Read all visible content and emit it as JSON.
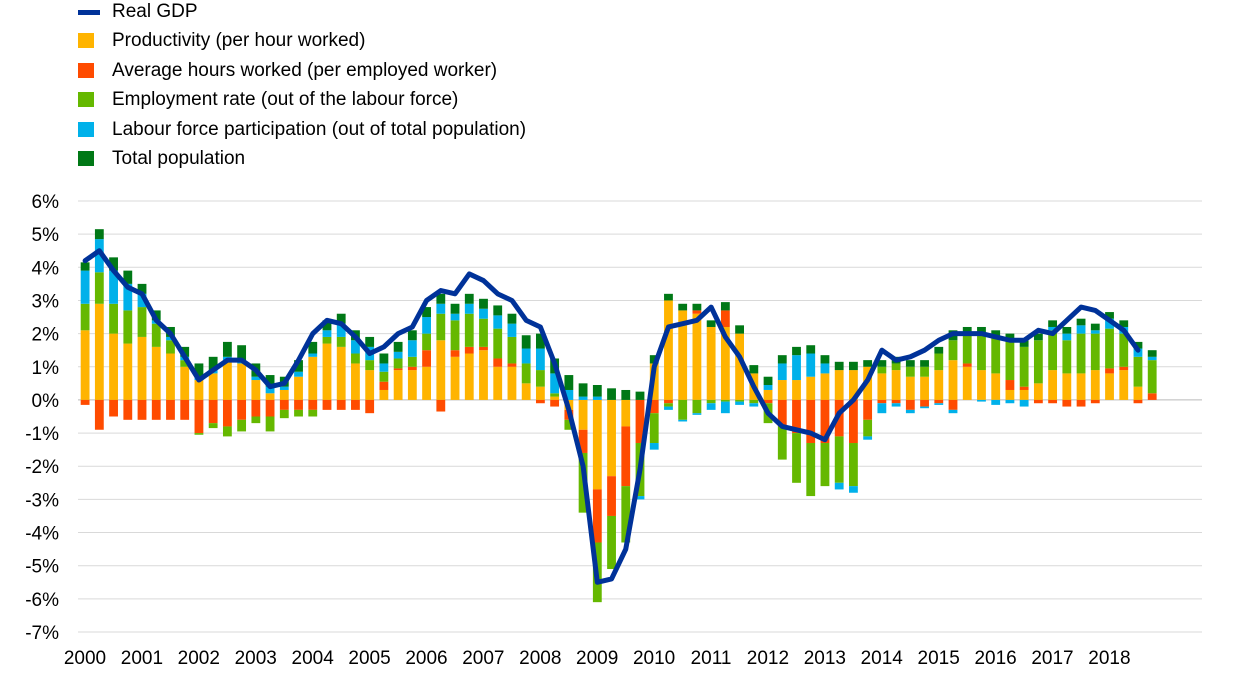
{
  "chart_data": {
    "type": "bar",
    "stacked": true,
    "grid": true,
    "legend_position": "top-left",
    "ylim": [
      -7,
      6
    ],
    "y_ticks": [
      "6%",
      "5%",
      "4%",
      "3%",
      "2%",
      "1%",
      "0%",
      "-1%",
      "-2%",
      "-3%",
      "-4%",
      "-5%",
      "-6%",
      "-7%"
    ],
    "x_tick_labels": [
      "2000",
      "2001",
      "2002",
      "2003",
      "2004",
      "2005",
      "2006",
      "2007",
      "2008",
      "2009",
      "2010",
      "2011",
      "2012",
      "2013",
      "2014",
      "2015",
      "2016",
      "2017",
      "2018"
    ],
    "quarters_per_year": 4,
    "series": [
      {
        "name": "Real GDP",
        "kind": "line",
        "color": "#003299",
        "values": [
          4.2,
          4.5,
          3.9,
          3.4,
          3.2,
          2.4,
          2.0,
          1.3,
          0.6,
          0.9,
          1.2,
          1.2,
          0.9,
          0.4,
          0.5,
          1.2,
          2.0,
          2.4,
          2.3,
          1.9,
          1.4,
          1.6,
          2.0,
          2.2,
          3.0,
          3.3,
          3.2,
          3.8,
          3.6,
          3.2,
          3.0,
          2.4,
          2.2,
          1.1,
          -0.3,
          -2.0,
          -5.5,
          -5.4,
          -4.5,
          -2.1,
          1.0,
          2.2,
          2.3,
          2.4,
          2.8,
          1.9,
          1.3,
          0.4,
          -0.4,
          -0.8,
          -0.9,
          -1.0,
          -1.2,
          -0.4,
          0.0,
          0.6,
          1.5,
          1.2,
          1.3,
          1.5,
          1.8,
          2.0,
          2.0,
          2.0,
          1.9,
          1.8,
          1.8,
          2.1,
          2.0,
          2.4,
          2.8,
          2.7,
          2.4,
          2.1,
          1.5
        ]
      },
      {
        "name": "Productivity (per hour worked)",
        "color": "#ffb400",
        "values": [
          2.1,
          2.9,
          2.0,
          1.7,
          1.9,
          1.6,
          1.4,
          1.0,
          0.6,
          0.8,
          1.2,
          1.1,
          0.6,
          0.2,
          0.3,
          0.7,
          1.3,
          1.7,
          1.6,
          1.1,
          0.9,
          0.3,
          0.9,
          0.9,
          1.0,
          1.8,
          1.3,
          1.4,
          1.5,
          1.0,
          1.0,
          0.5,
          0.4,
          0.1,
          -0.3,
          -0.9,
          -2.7,
          -2.3,
          -0.8,
          0.0,
          1.1,
          3.0,
          2.7,
          2.6,
          2.2,
          2.2,
          2.0,
          0.8,
          0.3,
          0.6,
          0.6,
          0.7,
          0.8,
          0.9,
          0.9,
          1.0,
          0.8,
          0.9,
          0.7,
          0.7,
          0.9,
          1.2,
          1.0,
          0.9,
          0.8,
          0.3,
          0.3,
          0.5,
          0.9,
          0.8,
          0.8,
          0.9,
          0.8,
          0.9,
          0.4,
          0.0
        ]
      },
      {
        "name": "Average hours worked (per employed worker)",
        "color": "#ff4b00",
        "values": [
          -0.15,
          -0.9,
          -0.5,
          -0.6,
          -0.6,
          -0.6,
          -0.6,
          -0.6,
          -1.0,
          -0.7,
          -0.8,
          -0.6,
          -0.5,
          -0.5,
          -0.3,
          -0.3,
          -0.3,
          -0.3,
          -0.3,
          -0.3,
          -0.4,
          0.25,
          0.05,
          0.1,
          0.5,
          -0.35,
          0.2,
          0.2,
          0.1,
          0.25,
          0.1,
          0.0,
          -0.1,
          -0.2,
          -0.3,
          -0.7,
          -1.6,
          -1.2,
          -1.8,
          -1.3,
          -0.4,
          -0.1,
          0.0,
          0.1,
          0.0,
          0.5,
          0.0,
          0.0,
          -0.1,
          -0.8,
          -1.0,
          -1.3,
          -1.3,
          -1.1,
          -1.3,
          -0.6,
          -0.1,
          -0.1,
          -0.3,
          -0.2,
          -0.1,
          -0.3,
          0.1,
          0.0,
          0.0,
          0.3,
          0.1,
          -0.1,
          -0.1,
          -0.2,
          -0.2,
          -0.1,
          0.15,
          0.1,
          -0.1,
          0.2
        ]
      },
      {
        "name": "Employment rate (out of the labour force)",
        "color": "#65b800",
        "values": [
          0.8,
          0.95,
          0.9,
          1.0,
          0.9,
          0.7,
          0.4,
          0.2,
          -0.05,
          -0.15,
          -0.3,
          -0.35,
          -0.2,
          -0.45,
          -0.25,
          -0.2,
          -0.2,
          0.2,
          0.3,
          0.3,
          0.3,
          0.3,
          0.3,
          0.3,
          0.5,
          0.8,
          0.9,
          1.0,
          0.85,
          0.9,
          0.8,
          0.6,
          0.5,
          0.1,
          -0.3,
          -1.8,
          -1.8,
          -1.6,
          -1.7,
          -1.6,
          -0.9,
          -0.1,
          -0.6,
          -0.4,
          -0.1,
          -0.05,
          -0.05,
          -0.1,
          -0.6,
          -1.0,
          -1.5,
          -1.6,
          -1.3,
          -1.4,
          -1.3,
          -0.5,
          0.2,
          0.2,
          0.3,
          0.3,
          0.5,
          0.6,
          0.9,
          1.1,
          1.1,
          1.2,
          1.2,
          1.3,
          1.2,
          1.0,
          1.2,
          1.1,
          1.2,
          1.0,
          0.9,
          1.0
        ]
      },
      {
        "name": "Labour force participation (out of total population)",
        "color": "#00b1ea",
        "values": [
          1.0,
          1.0,
          1.0,
          0.8,
          0.4,
          0.1,
          0.1,
          0.1,
          0.1,
          0.1,
          0.1,
          0.1,
          0.1,
          0.2,
          0.1,
          0.15,
          0.1,
          0.2,
          0.4,
          0.4,
          0.4,
          0.25,
          0.2,
          0.5,
          0.5,
          0.3,
          0.2,
          0.3,
          0.3,
          0.4,
          0.4,
          0.45,
          0.65,
          0.6,
          0.3,
          0.1,
          0.1,
          0.0,
          0.0,
          -0.1,
          -0.2,
          -0.1,
          -0.05,
          -0.05,
          -0.2,
          -0.35,
          -0.1,
          -0.1,
          0.15,
          0.5,
          0.75,
          0.7,
          0.3,
          -0.2,
          -0.2,
          -0.1,
          -0.3,
          -0.1,
          -0.1,
          -0.05,
          -0.05,
          -0.1,
          0.0,
          -0.05,
          -0.15,
          -0.1,
          -0.2,
          0.0,
          0.1,
          0.2,
          0.25,
          0.1,
          0.3,
          0.2,
          0.25,
          0.1
        ]
      },
      {
        "name": "Total population",
        "color": "#007816",
        "values": [
          0.25,
          0.3,
          0.4,
          0.4,
          0.3,
          0.3,
          0.3,
          0.3,
          0.4,
          0.4,
          0.45,
          0.45,
          0.4,
          0.35,
          0.3,
          0.35,
          0.35,
          0.3,
          0.3,
          0.3,
          0.3,
          0.3,
          0.3,
          0.3,
          0.3,
          0.3,
          0.3,
          0.3,
          0.3,
          0.3,
          0.3,
          0.4,
          0.45,
          0.45,
          0.45,
          0.4,
          0.35,
          0.35,
          0.3,
          0.25,
          0.25,
          0.2,
          0.2,
          0.2,
          0.2,
          0.25,
          0.25,
          0.25,
          0.25,
          0.25,
          0.25,
          0.25,
          0.25,
          0.25,
          0.25,
          0.2,
          0.2,
          0.2,
          0.2,
          0.2,
          0.2,
          0.3,
          0.2,
          0.2,
          0.2,
          0.2,
          0.2,
          0.2,
          0.2,
          0.2,
          0.2,
          0.2,
          0.2,
          0.2,
          0.2,
          0.2
        ]
      }
    ]
  },
  "legend": [
    {
      "label": "Real GDP",
      "color": "#003299",
      "kind": "line"
    },
    {
      "label": "Productivity (per hour worked)",
      "color": "#ffb400",
      "kind": "box"
    },
    {
      "label": "Average hours worked (per employed worker)",
      "color": "#ff4b00",
      "kind": "box"
    },
    {
      "label": "Employment rate (out of the labour force)",
      "color": "#65b800",
      "kind": "box"
    },
    {
      "label": "Labour force participation (out of total population)",
      "color": "#00b1ea",
      "kind": "box"
    },
    {
      "label": "Total population",
      "color": "#007816",
      "kind": "box"
    }
  ]
}
